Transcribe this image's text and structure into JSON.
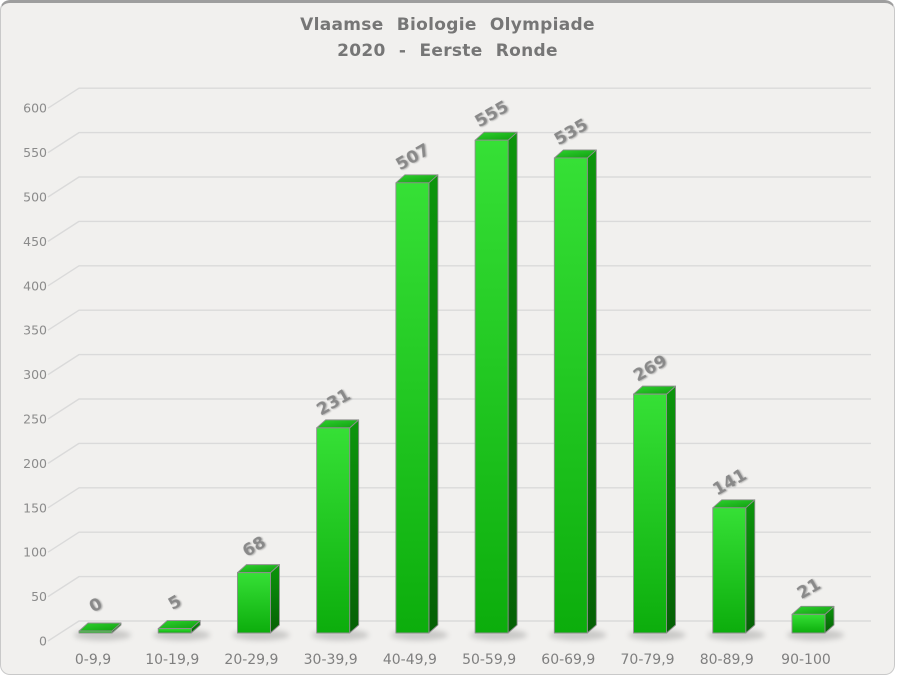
{
  "title": {
    "line1": "Vlaamse Biologie Olympiade",
    "line2": "2020 - Eerste Ronde"
  },
  "chart_data": {
    "type": "bar",
    "style": "3d-column",
    "title": "Vlaamse Biologie Olympiade 2020 - Eerste Ronde",
    "categories": [
      "0-9,9",
      "10-19,9",
      "20-29,9",
      "30-39,9",
      "40-49,9",
      "50-59,9",
      "60-69,9",
      "70-79,9",
      "80-89,9",
      "90-100"
    ],
    "values": [
      0,
      5,
      68,
      231,
      507,
      555,
      535,
      269,
      141,
      21
    ],
    "data_labels": [
      "0",
      "5",
      "68",
      "231",
      "507",
      "555",
      "535",
      "269",
      "141",
      "21"
    ],
    "xlabel": "",
    "ylabel": "",
    "ylim": [
      0,
      600
    ],
    "ytick_step": 50,
    "yticks": [
      0,
      50,
      100,
      150,
      200,
      250,
      300,
      350,
      400,
      450,
      500,
      550,
      600
    ],
    "grid": true,
    "legend": false,
    "colors": {
      "background": "#f1f0ee",
      "gridline": "#dadada",
      "bar_front_top": "#36e036",
      "bar_front_bottom": "#0cad0c",
      "bar_side_top": "#0c960c",
      "bar_side_bottom": "#056005",
      "bar_top_light": "#2ed32e",
      "bar_top_dark": "#119e11",
      "bar_outline": "#8f8f8f",
      "axis_text": "#7f7f7f",
      "title_text": "#767676",
      "data_label_text": "#898989",
      "shadow": "#6f6f6f"
    }
  }
}
